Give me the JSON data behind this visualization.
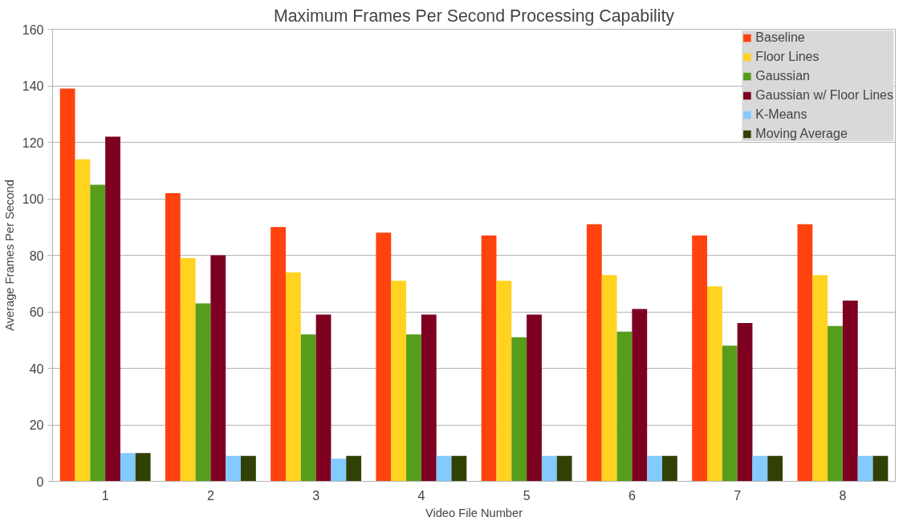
{
  "chart_data": {
    "type": "bar",
    "title": "Maximum Frames Per Second Processing Capability",
    "xlabel": "Video File Number",
    "ylabel": "Average Frames Per Second",
    "categories": [
      "1",
      "2",
      "3",
      "4",
      "5",
      "6",
      "7",
      "8"
    ],
    "ylim": [
      0,
      160
    ],
    "yticks": [
      0,
      20,
      40,
      60,
      80,
      100,
      120,
      140,
      160
    ],
    "grid": "y",
    "legend": "top right",
    "series": [
      {
        "name": "Baseline",
        "color": "#ff420e",
        "values": [
          139,
          102,
          90,
          88,
          87,
          91,
          87,
          91
        ]
      },
      {
        "name": "Floor Lines",
        "color": "#ffd320",
        "values": [
          114,
          79,
          74,
          71,
          71,
          73,
          69,
          73
        ]
      },
      {
        "name": "Gaussian",
        "color": "#579d1c",
        "values": [
          105,
          63,
          52,
          52,
          51,
          53,
          48,
          55
        ]
      },
      {
        "name": "Gaussian w/ Floor Lines",
        "color": "#7e0021",
        "values": [
          122,
          80,
          59,
          59,
          59,
          61,
          56,
          64
        ]
      },
      {
        "name": "K-Means",
        "color": "#83caff",
        "values": [
          10,
          9,
          8,
          9,
          9,
          9,
          9,
          9
        ]
      },
      {
        "name": "Moving Average",
        "color": "#314004",
        "values": [
          10,
          9,
          9,
          9,
          9,
          9,
          9,
          9
        ]
      }
    ]
  }
}
